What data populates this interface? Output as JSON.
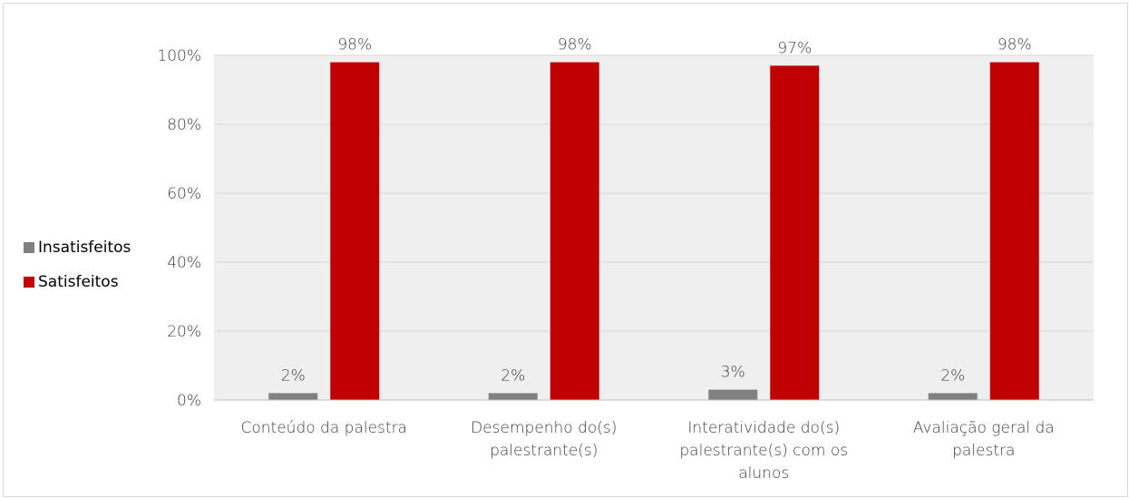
{
  "chart_data": {
    "type": "bar",
    "categories": [
      [
        "Conteúdo da palestra"
      ],
      [
        "Desempenho do(s)",
        "palestrante(s)"
      ],
      [
        "Interatividade do(s)",
        "palestrante(s) com os",
        "alunos"
      ],
      [
        "Avaliação geral da",
        "palestra"
      ]
    ],
    "series": [
      {
        "name": "Insatisfeitos",
        "color": "#808080",
        "values": [
          2,
          2,
          3,
          2
        ],
        "labels": [
          "2%",
          "2%",
          "3%",
          "2%"
        ]
      },
      {
        "name": "Satisfeitos",
        "color": "#c00000",
        "values": [
          98,
          98,
          97,
          98
        ],
        "labels": [
          "98%",
          "98%",
          "97%",
          "98%"
        ]
      }
    ],
    "ylim": [
      0,
      100
    ],
    "yticks": [
      0,
      20,
      40,
      60,
      80,
      100
    ],
    "ytick_labels": [
      "0%",
      "20%",
      "40%",
      "60%",
      "80%",
      "100%"
    ],
    "plot_background": "#efefef",
    "grid": true,
    "legend_position": "left"
  }
}
